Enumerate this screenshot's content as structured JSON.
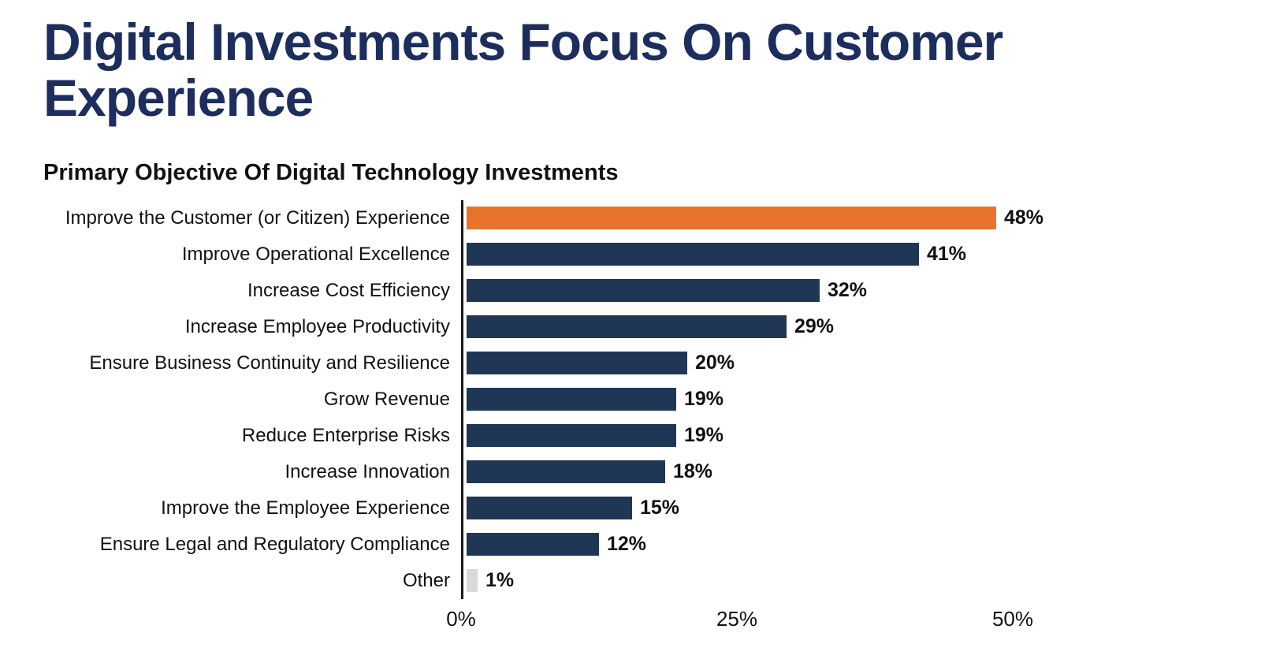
{
  "page": {
    "title": "Digital Investments Focus On Customer Experience"
  },
  "chart_data": {
    "type": "bar",
    "orientation": "horizontal",
    "title": "Primary Objective Of Digital Technology Investments",
    "categories": [
      "Improve the Customer (or Citizen) Experience",
      "Improve Operational Excellence",
      "Increase Cost Efficiency",
      "Increase Employee Productivity",
      "Ensure Business Continuity and Resilience",
      "Grow Revenue",
      "Reduce Enterprise Risks",
      "Increase Innovation",
      "Improve the Employee Experience",
      "Ensure Legal and Regulatory Compliance",
      "Other"
    ],
    "values": [
      48,
      41,
      32,
      29,
      20,
      19,
      19,
      18,
      15,
      12,
      1
    ],
    "value_labels": [
      "48%",
      "41%",
      "32%",
      "29%",
      "20%",
      "19%",
      "19%",
      "18%",
      "15%",
      "12%",
      "1%"
    ],
    "xlim": [
      0,
      50
    ],
    "x_ticks": [
      {
        "pos": 0,
        "label": "0%"
      },
      {
        "pos": 25,
        "label": "25%"
      },
      {
        "pos": 50,
        "label": "50%"
      }
    ],
    "grid": false,
    "legend": false,
    "colors": {
      "highlight": "#e8742c",
      "default": "#203655",
      "other": "#d9d9d9",
      "title": "#1c2d5e"
    },
    "bar_color_keys": [
      "highlight",
      "default",
      "default",
      "default",
      "default",
      "default",
      "default",
      "default",
      "default",
      "default",
      "other"
    ]
  }
}
